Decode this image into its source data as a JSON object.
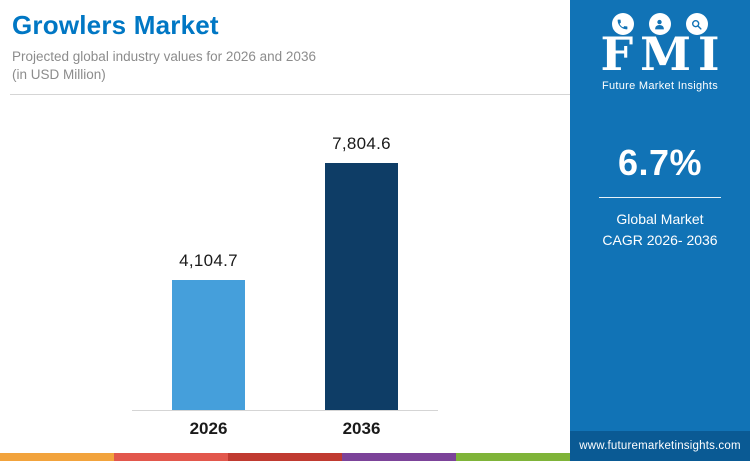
{
  "header": {
    "title": "Growlers Market",
    "subtitle_line1": "Projected global industry values for 2026 and 2036",
    "subtitle_line2": "(in USD Million)"
  },
  "chart_data": {
    "type": "bar",
    "title": "Growlers Market",
    "subtitle": "Projected global industry values for 2026 and 2036 (in USD Million)",
    "categories": [
      "2026",
      "2036"
    ],
    "values": [
      4104.7,
      7804.6
    ],
    "value_labels": [
      "4,104.7",
      "7,804.6"
    ],
    "colors": [
      "#459FDB",
      "#0E3D66"
    ],
    "xlabel": "",
    "ylabel": "USD Million",
    "ylim": [
      0,
      8000
    ],
    "grid": false,
    "legend": false
  },
  "side_panel": {
    "logo_text": "FMI",
    "logo_subtext": "Future Market Insights",
    "logo_icons": [
      "phone-icon",
      "person-icon",
      "search-icon"
    ],
    "stat_value": "6.7%",
    "stat_label_line1": "Global Market",
    "stat_label_line2": "CAGR 2026- 2036",
    "url": "www.futuremarketinsights.com"
  },
  "bottom_strip": {
    "colors": [
      "#F2A33C",
      "#E2574C",
      "#C03A30",
      "#7C4399",
      "#7FB439"
    ]
  },
  "theme": {
    "title_blue": "#0077C4",
    "subtitle_gray": "#8C8C8C",
    "panel_blue": "#1173B6",
    "url_bar_blue": "#0A5A94",
    "divider_gray": "#D5D5D5",
    "text_dark": "#1A1A1A"
  }
}
